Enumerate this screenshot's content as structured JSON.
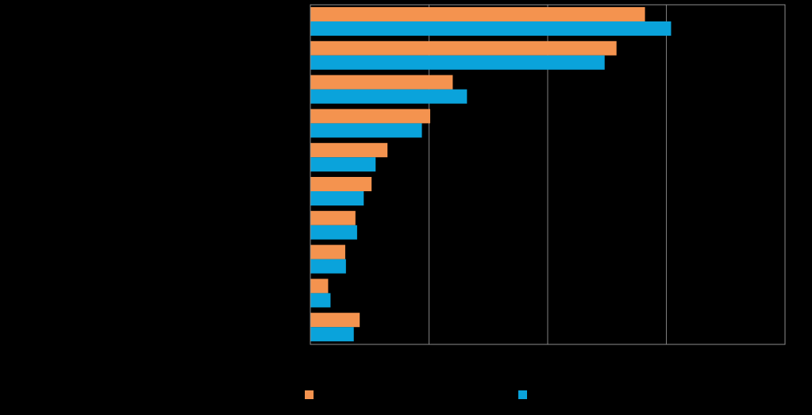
{
  "chart_data": {
    "type": "bar",
    "orientation": "horizontal",
    "categories": [
      "",
      "",
      "",
      "",
      "",
      "",
      "",
      "",
      "",
      ""
    ],
    "series": [
      {
        "color": "#F4934F",
        "values": [
          141,
          129,
          60,
          50.5,
          32.5,
          25.8,
          19,
          14.7,
          7.5,
          20.8
        ]
      },
      {
        "color": "#0AA3DB",
        "values": [
          152,
          124,
          66,
          47,
          27.5,
          22.5,
          19.7,
          15,
          8.5,
          18.3
        ]
      }
    ],
    "xlim": [
      0,
      200
    ],
    "x_gridlines": [
      50,
      100,
      150
    ],
    "grid": true,
    "legend_position": "bottom",
    "title": "",
    "xlabel": "",
    "ylabel": ""
  },
  "legend": {
    "items": [
      {
        "color": "#F4934F",
        "label": ""
      },
      {
        "color": "#0AA3DB",
        "label": ""
      }
    ]
  }
}
